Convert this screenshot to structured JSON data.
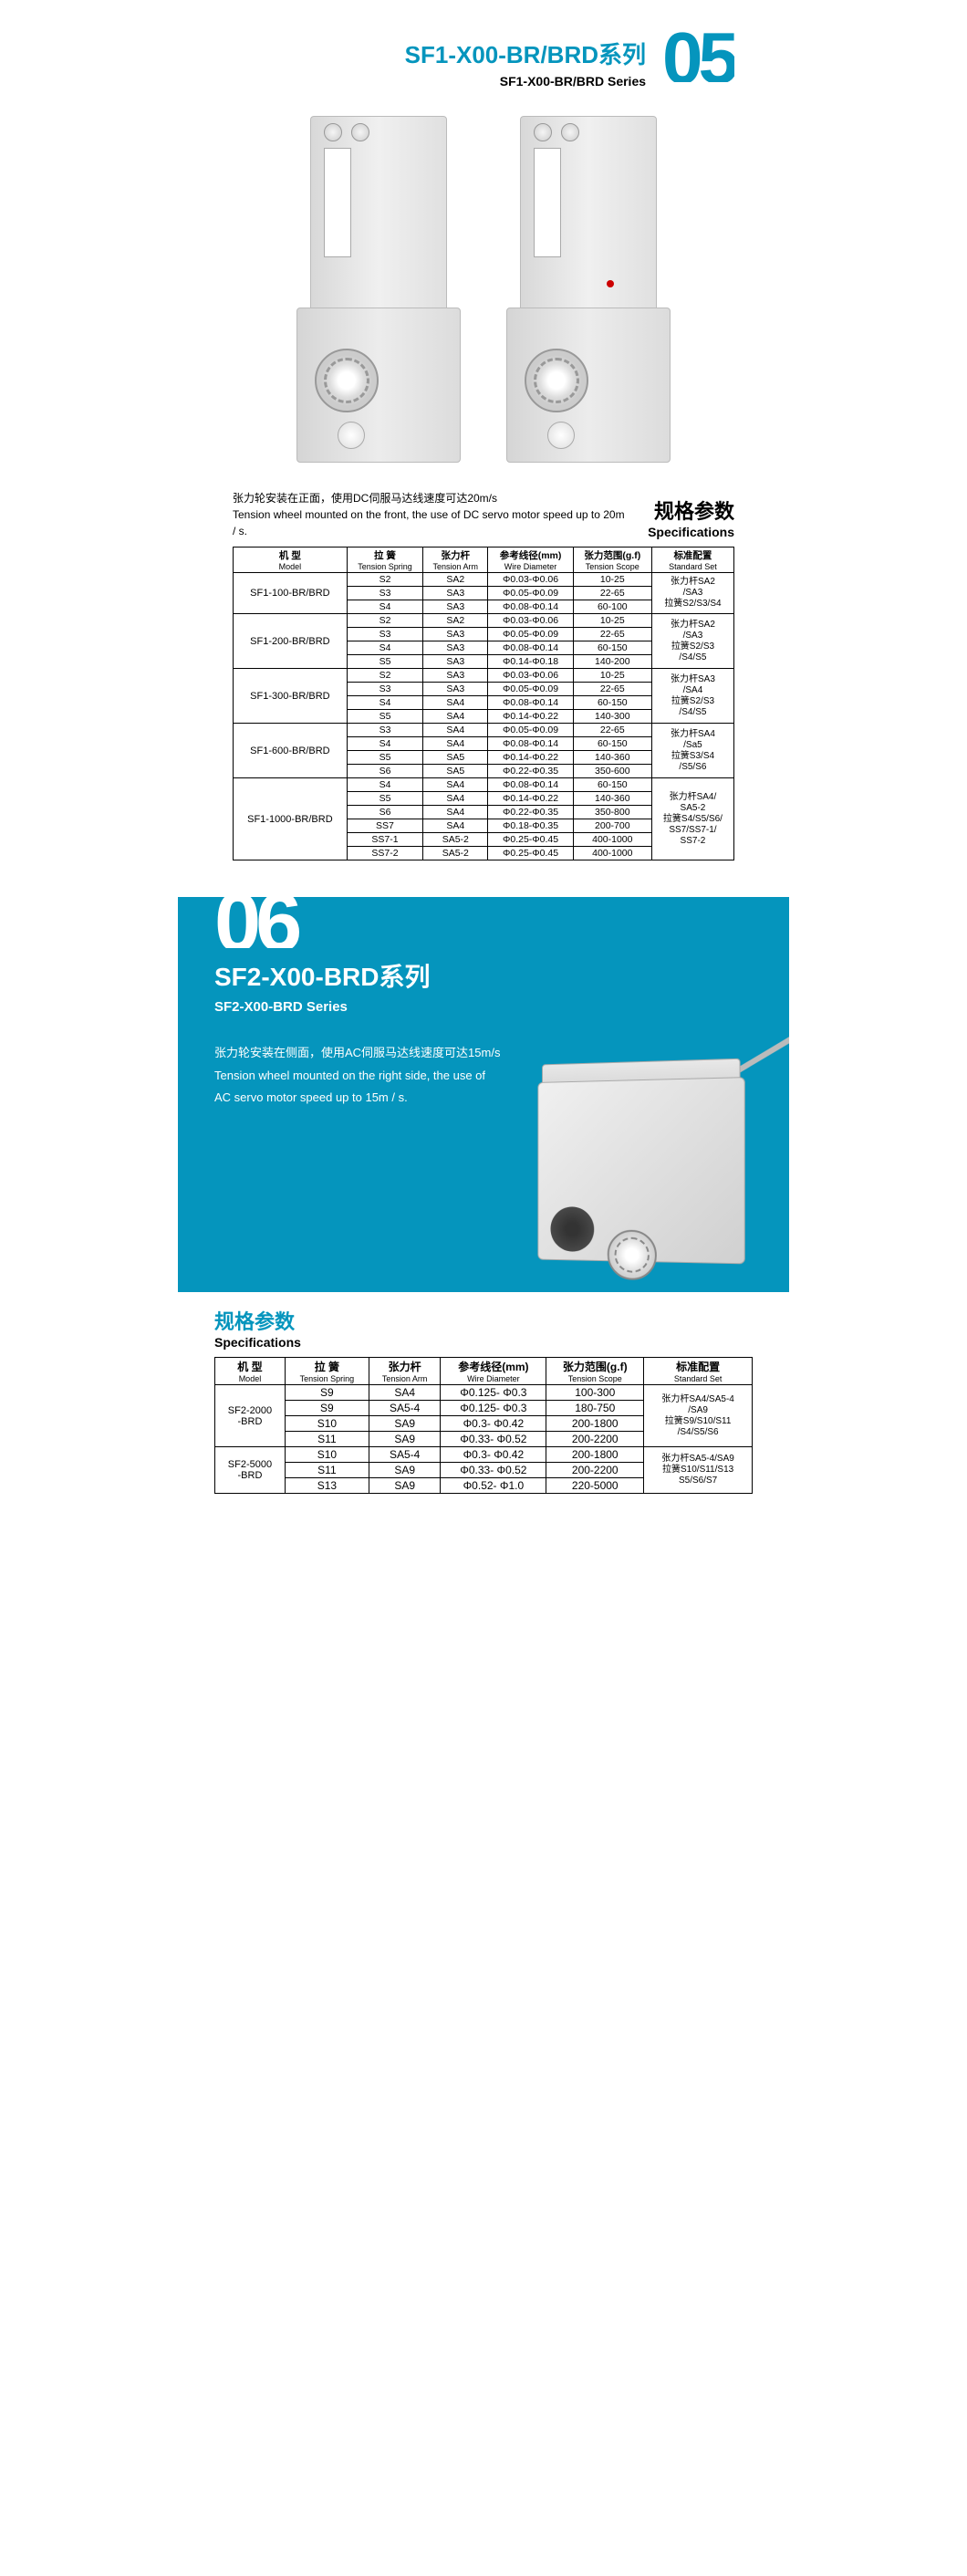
{
  "accent_color": "#0595bd",
  "section1": {
    "big_number": "05",
    "title_cn": "SF1-X00-BR/BRD系列",
    "title_en": "SF1-X00-BR/BRD Series",
    "desc_cn": "张力轮安装在正面，使用DC伺服马达线速度可达20m/s",
    "desc_en": "Tension wheel mounted on the front, the use of DC servo motor speed up to 20m / s.",
    "spec_cn": "规格参数",
    "spec_en": "Specifications",
    "columns": [
      {
        "cn": "机 型",
        "en": "Model"
      },
      {
        "cn": "拉 簧",
        "en": "Tension Spring"
      },
      {
        "cn": "张力杆",
        "en": "Tension Arm"
      },
      {
        "cn": "参考线径(mm)",
        "en": "Wire Diameter"
      },
      {
        "cn": "张力范围(g.f)",
        "en": "Tension Scope"
      },
      {
        "cn": "标准配置",
        "en": "Standard Set"
      }
    ],
    "groups": [
      {
        "model": "SF1-100-BR/BRD",
        "std": "张力杆SA2\n/SA3\n拉簧S2/S3/S4",
        "rows": [
          [
            "S2",
            "SA2",
            "Φ0.03-Φ0.06",
            "10-25"
          ],
          [
            "S3",
            "SA3",
            "Φ0.05-Φ0.09",
            "22-65"
          ],
          [
            "S4",
            "SA3",
            "Φ0.08-Φ0.14",
            "60-100"
          ]
        ]
      },
      {
        "model": "SF1-200-BR/BRD",
        "std": "张力杆SA2\n/SA3\n拉簧S2/S3\n/S4/S5",
        "rows": [
          [
            "S2",
            "SA2",
            "Φ0.03-Φ0.06",
            "10-25"
          ],
          [
            "S3",
            "SA3",
            "Φ0.05-Φ0.09",
            "22-65"
          ],
          [
            "S4",
            "SA3",
            "Φ0.08-Φ0.14",
            "60-150"
          ],
          [
            "S5",
            "SA3",
            "Φ0.14-Φ0.18",
            "140-200"
          ]
        ]
      },
      {
        "model": "SF1-300-BR/BRD",
        "std": "张力杆SA3\n/SA4\n拉簧S2/S3\n/S4/S5",
        "rows": [
          [
            "S2",
            "SA3",
            "Φ0.03-Φ0.06",
            "10-25"
          ],
          [
            "S3",
            "SA3",
            "Φ0.05-Φ0.09",
            "22-65"
          ],
          [
            "S4",
            "SA4",
            "Φ0.08-Φ0.14",
            "60-150"
          ],
          [
            "S5",
            "SA4",
            "Φ0.14-Φ0.22",
            "140-300"
          ]
        ]
      },
      {
        "model": "SF1-600-BR/BRD",
        "std": "张力杆SA4\n/Sa5\n拉簧S3/S4\n/S5/S6",
        "rows": [
          [
            "S3",
            "SA4",
            "Φ0.05-Φ0.09",
            "22-65"
          ],
          [
            "S4",
            "SA4",
            "Φ0.08-Φ0.14",
            "60-150"
          ],
          [
            "S5",
            "SA5",
            "Φ0.14-Φ0.22",
            "140-360"
          ],
          [
            "S6",
            "SA5",
            "Φ0.22-Φ0.35",
            "350-600"
          ]
        ]
      },
      {
        "model": "SF1-1000-BR/BRD",
        "std": "张力杆SA4/\nSA5-2\n拉簧S4/S5/S6/\nSS7/SS7-1/\nSS7-2",
        "rows": [
          [
            "S4",
            "SA4",
            "Φ0.08-Φ0.14",
            "60-150"
          ],
          [
            "S5",
            "SA4",
            "Φ0.14-Φ0.22",
            "140-360"
          ],
          [
            "S6",
            "SA4",
            "Φ0.22-Φ0.35",
            "350-800"
          ],
          [
            "SS7",
            "SA4",
            "Φ0.18-Φ0.35",
            "200-700"
          ],
          [
            "SS7-1",
            "SA5-2",
            "Φ0.25-Φ0.45",
            "400-1000"
          ],
          [
            "SS7-2",
            "SA5-2",
            "Φ0.25-Φ0.45",
            "400-1000"
          ]
        ]
      }
    ]
  },
  "section2": {
    "big_number": "06",
    "title_cn": "SF2-X00-BRD系列",
    "title_en": "SF2-X00-BRD Series",
    "desc_cn": "张力轮安装在侧面，使用AC伺服马达线速度可达15m/s",
    "desc_en1": "Tension wheel mounted on the right side, the use of",
    "desc_en2": "AC servo motor speed up to 15m / s.",
    "spec_cn": "规格参数",
    "spec_en": "Specifications",
    "columns": [
      {
        "cn": "机 型",
        "en": "Model"
      },
      {
        "cn": "拉 簧",
        "en": "Tension Spring"
      },
      {
        "cn": "张力杆",
        "en": "Tension Arm"
      },
      {
        "cn": "参考线径(mm)",
        "en": "Wire Diameter"
      },
      {
        "cn": "张力范围(g.f)",
        "en": "Tension Scope"
      },
      {
        "cn": "标准配置",
        "en": "Standard Set"
      }
    ],
    "groups": [
      {
        "model": "SF2-2000\n-BRD",
        "std": "张力杆SA4/SA5-4\n/SA9\n拉簧S9/S10/S11\n/S4/S5/S6",
        "rows": [
          [
            "S9",
            "SA4",
            "Φ0.125- Φ0.3",
            "100-300"
          ],
          [
            "S9",
            "SA5-4",
            "Φ0.125- Φ0.3",
            "180-750"
          ],
          [
            "S10",
            "SA9",
            "Φ0.3- Φ0.42",
            "200-1800"
          ],
          [
            "S11",
            "SA9",
            "Φ0.33- Φ0.52",
            "200-2200"
          ]
        ]
      },
      {
        "model": "SF2-5000\n-BRD",
        "std": "张力杆SA5-4/SA9\n拉簧S10/S11/S13\nS5/S6/S7",
        "rows": [
          [
            "S10",
            "SA5-4",
            "Φ0.3- Φ0.42",
            "200-1800"
          ],
          [
            "S11",
            "SA9",
            "Φ0.33- Φ0.52",
            "200-2200"
          ],
          [
            "S13",
            "SA9",
            "Φ0.52- Φ1.0",
            "220-5000"
          ]
        ]
      }
    ]
  }
}
